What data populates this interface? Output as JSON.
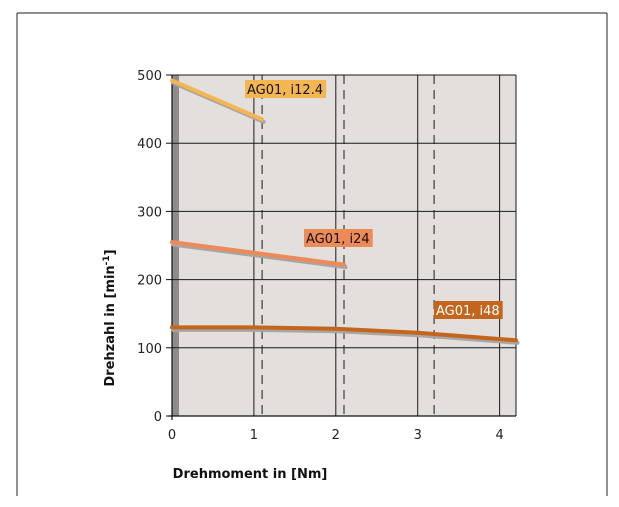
{
  "chart_data": {
    "type": "line",
    "xlabel": "Drehmoment in [Nm]",
    "ylabel_main": "Drehzahl in [min",
    "ylabel_sup": "-1",
    "ylabel_end": "]",
    "xlim": [
      0,
      4.2
    ],
    "ylim": [
      0,
      500
    ],
    "x_ticks": [
      "0",
      "1",
      "2",
      "3",
      "4"
    ],
    "y_ticks": [
      "0",
      "100",
      "200",
      "300",
      "400",
      "500"
    ],
    "grid": true,
    "series": [
      {
        "name": "AG01, i12.4",
        "color": "#f4b651",
        "x": [
          0,
          1.1
        ],
        "y": [
          492,
          435
        ]
      },
      {
        "name": "AG01, i24",
        "color": "#ee8a57",
        "x": [
          0,
          2.1
        ],
        "y": [
          255,
          222
        ]
      },
      {
        "name": "AG01, i48",
        "color": "#c4651d",
        "x": [
          0,
          1.0,
          2.0,
          3.0,
          4.2
        ],
        "y": [
          130,
          130,
          128,
          122,
          111
        ]
      }
    ],
    "dashed_lines_x": [
      1.1,
      2.1,
      3.2
    ],
    "label_text_colors": [
      "#111111",
      "#111111",
      "#ffffff"
    ]
  }
}
